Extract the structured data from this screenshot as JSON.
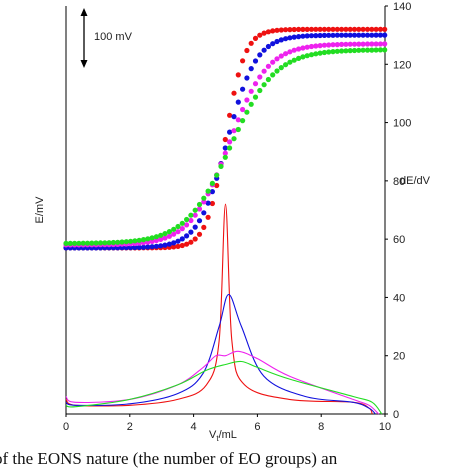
{
  "chart_data": {
    "type": "scatter",
    "x_axis": {
      "label": "V",
      "label_sub": "t",
      "label_suffix": "/mL",
      "ticks": [
        0,
        2,
        4,
        6,
        8,
        10
      ],
      "range": [
        0,
        10
      ]
    },
    "left_axis": {
      "label": "E/mV"
    },
    "right_axis": {
      "label": "dE/dV",
      "ticks": [
        0,
        20,
        40,
        60,
        80,
        100,
        120,
        140
      ],
      "range": [
        0,
        140
      ]
    },
    "scale_bar": {
      "label": "100 mV"
    },
    "titration_series": [
      {
        "color": "#ee1111",
        "left": 57,
        "right": 132,
        "mid": 5.0,
        "width": 0.3
      },
      {
        "color": "#1111dd",
        "left": 57,
        "right": 130,
        "mid": 5.05,
        "width": 0.45
      },
      {
        "color": "#ee22ee",
        "left": 58,
        "right": 127,
        "mid": 5.1,
        "width": 0.6
      },
      {
        "color": "#22dd22",
        "left": 58.5,
        "right": 125,
        "mid": 5.15,
        "width": 0.7
      }
    ],
    "derivative_series": [
      {
        "color": "#ee1111",
        "points": [
          [
            0,
            5
          ],
          [
            0.3,
            3
          ],
          [
            2,
            3
          ],
          [
            3.5,
            5
          ],
          [
            4.4,
            10
          ],
          [
            4.8,
            25
          ],
          [
            5.0,
            72
          ],
          [
            5.2,
            25
          ],
          [
            5.6,
            10
          ],
          [
            7,
            5
          ],
          [
            9,
            4
          ],
          [
            9.5,
            2
          ],
          [
            9.6,
            0
          ]
        ]
      },
      {
        "color": "#1111dd",
        "points": [
          [
            0,
            4
          ],
          [
            0.3,
            3
          ],
          [
            2,
            3.5
          ],
          [
            3.5,
            7
          ],
          [
            4.3,
            14
          ],
          [
            4.8,
            30
          ],
          [
            5.1,
            41
          ],
          [
            5.5,
            30
          ],
          [
            6.2,
            13
          ],
          [
            7.5,
            6
          ],
          [
            9,
            4
          ],
          [
            9.5,
            2
          ],
          [
            9.7,
            0
          ]
        ]
      },
      {
        "color": "#ee22ee",
        "points": [
          [
            0,
            6
          ],
          [
            0.3,
            4
          ],
          [
            2,
            5
          ],
          [
            3.5,
            10
          ],
          [
            4.3,
            16
          ],
          [
            4.7,
            20
          ],
          [
            5.0,
            20
          ],
          [
            5.4,
            21.5
          ],
          [
            6,
            19
          ],
          [
            7,
            13
          ],
          [
            9,
            5
          ],
          [
            9.5,
            3
          ],
          [
            9.8,
            0
          ]
        ]
      },
      {
        "color": "#22dd22",
        "points": [
          [
            0,
            3
          ],
          [
            0.3,
            2.5
          ],
          [
            2,
            5
          ],
          [
            3.5,
            10
          ],
          [
            4.4,
            15
          ],
          [
            5,
            17
          ],
          [
            5.5,
            18
          ],
          [
            6,
            16
          ],
          [
            7,
            12
          ],
          [
            9,
            6
          ],
          [
            9.6,
            4
          ],
          [
            9.9,
            0
          ]
        ]
      }
    ]
  },
  "caption": "of the EONS nature (the number of EO groups) an"
}
